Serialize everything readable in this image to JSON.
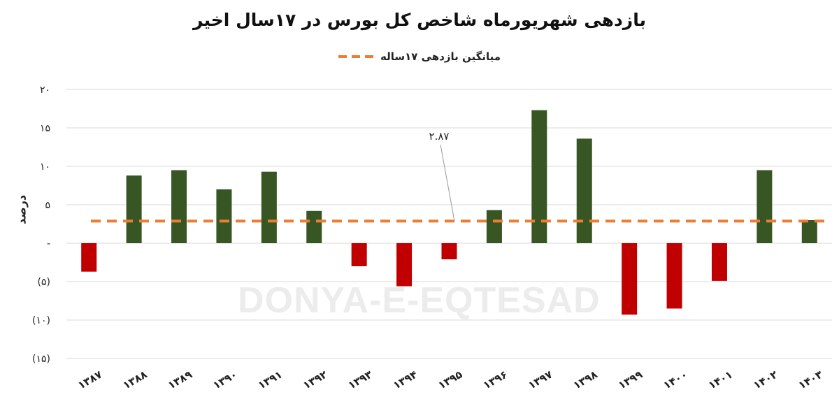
{
  "chart_data": {
    "type": "bar",
    "title": "بازدهی شهریورماه شاخص کل بورس در ۱۷سال اخیر",
    "ylabel": "درصد",
    "xlabel": "",
    "categories": [
      "۱۳۸۷",
      "۱۳۸۸",
      "۱۳۸۹",
      "۱۳۹۰",
      "۱۳۹۱",
      "۱۳۹۲",
      "۱۳۹۳",
      "۱۳۹۴",
      "۱۳۹۵",
      "۱۳۹۶",
      "۱۳۹۷",
      "۱۳۹۸",
      "۱۳۹۹",
      "۱۴۰۰",
      "۱۴۰۱",
      "۱۴۰۲",
      "۱۴۰۳"
    ],
    "values": [
      -3.7,
      8.8,
      9.5,
      7.0,
      9.3,
      4.2,
      -3.0,
      -5.6,
      -2.1,
      4.3,
      17.3,
      13.6,
      -9.3,
      -8.5,
      -4.9,
      9.5,
      3.0
    ],
    "ylim": [
      -15,
      20
    ],
    "yticks": [
      20,
      15,
      10,
      5,
      0,
      -5,
      -10,
      -15
    ],
    "ytick_labels": [
      "۲۰",
      "۱۵",
      "۱۰",
      "۵",
      "-",
      "(۵)",
      "(۱۰)",
      "(۱۵)"
    ],
    "average": {
      "name": "میانگین بازدهی ۱۷ساله",
      "value": 2.87,
      "label": "۲.۸۷",
      "color": "#ed7d31"
    },
    "colors": {
      "positive": "#375623",
      "negative": "#c00000"
    },
    "grid": true,
    "legend": "top-center",
    "watermark": "DONYA-E-EQTESAD"
  }
}
